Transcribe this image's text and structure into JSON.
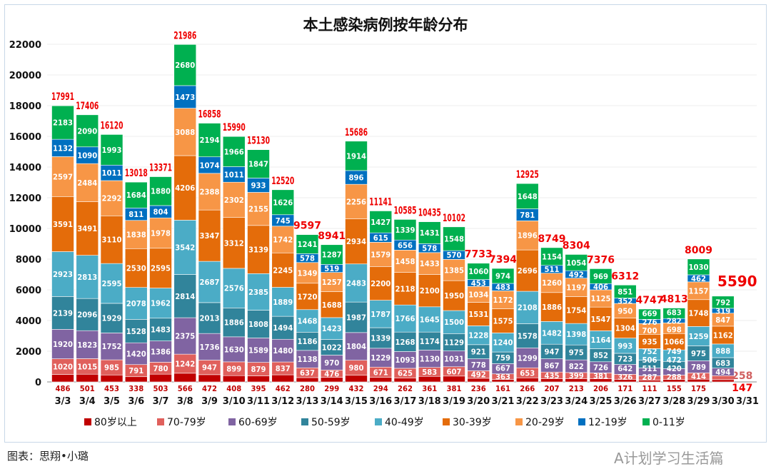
{
  "chart_data": {
    "type": "bar",
    "stacked": true,
    "title": "本土感染病例按年龄分布",
    "ylim": [
      0,
      22000
    ],
    "yticks": [
      0,
      2000,
      4000,
      6000,
      8000,
      10000,
      12000,
      14000,
      16000,
      18000,
      20000,
      22000
    ],
    "grid": true,
    "legend_position": "bottom",
    "categories": [
      "3/3",
      "3/4",
      "3/5",
      "3/6",
      "3/7",
      "3/8",
      "3/9",
      "3/10",
      "3/11",
      "3/12",
      "3/13",
      "3/14",
      "3/15",
      "3/16",
      "3/17",
      "3/18",
      "3/19",
      "3/20",
      "3/21",
      "3/22",
      "3/23",
      "3/24",
      "3/25",
      "3/26",
      "3/27",
      "3/28",
      "3/29",
      "3/30",
      "3/31"
    ],
    "totals": [
      17991,
      17406,
      16120,
      13018,
      13371,
      21986,
      16858,
      15990,
      15130,
      12520,
      9597,
      8941,
      15686,
      11141,
      10585,
      10435,
      10102,
      7733,
      7394,
      12925,
      8749,
      8304,
      7376,
      6312,
      4747,
      4813,
      8009,
      5590,
      null
    ],
    "series": [
      {
        "name": "80岁以上",
        "color": "#c00000",
        "values": [
          486,
          501,
          453,
          338,
          503,
          566,
          472,
          408,
          395,
          462,
          280,
          299,
          432,
          294,
          262,
          361,
          381,
          236,
          161,
          266,
          207,
          213,
          206,
          171,
          111,
          155,
          175,
          147,
          null
        ]
      },
      {
        "name": "70-79岁",
        "color": "#e0605c",
        "values": [
          1020,
          1015,
          985,
          791,
          780,
          1242,
          947,
          899,
          879,
          837,
          637,
          476,
          980,
          671,
          625,
          583,
          607,
          492,
          363,
          653,
          435,
          399,
          381,
          326,
          287,
          288,
          414,
          258,
          null
        ]
      },
      {
        "name": "60-69岁",
        "color": "#8064a2",
        "values": [
          1920,
          1823,
          1752,
          1420,
          1386,
          2375,
          1736,
          1630,
          1589,
          1480,
          1138,
          970,
          1804,
          1229,
          1093,
          1130,
          1031,
          778,
          667,
          1299,
          867,
          822,
          726,
          642,
          511,
          420,
          789,
          494,
          null
        ]
      },
      {
        "name": "50-59岁",
        "color": "#31849b",
        "values": [
          2139,
          2096,
          1929,
          1528,
          1483,
          2814,
          2013,
          1886,
          1808,
          1494,
          1186,
          1022,
          1987,
          1339,
          1268,
          1174,
          1129,
          921,
          759,
          1578,
          947,
          975,
          852,
          723,
          506,
          472,
          975,
          683,
          null
        ]
      },
      {
        "name": "40-49岁",
        "color": "#4bacc6",
        "values": [
          2923,
          2813,
          2595,
          2078,
          1962,
          3542,
          2687,
          2576,
          2385,
          1889,
          1468,
          1423,
          2483,
          1787,
          1766,
          1645,
          1500,
          1228,
          1240,
          2108,
          1482,
          1398,
          1164,
          993,
          752,
          749,
          1259,
          888,
          null
        ]
      },
      {
        "name": "30-39岁",
        "color": "#e46c0a",
        "values": [
          3591,
          3491,
          3110,
          2530,
          2595,
          4206,
          3347,
          3312,
          3139,
          2245,
          1720,
          1688,
          2934,
          2200,
          2118,
          2100,
          1950,
          1531,
          1575,
          2696,
          1886,
          1754,
          1547,
          1304,
          935,
          1066,
          1748,
          1162,
          null
        ]
      },
      {
        "name": "20-29岁",
        "color": "#f79646",
        "values": [
          2597,
          2484,
          2292,
          1838,
          1978,
          3088,
          2388,
          2302,
          2155,
          1742,
          1349,
          1257,
          2256,
          1579,
          1458,
          1433,
          1385,
          1034,
          1172,
          1896,
          1260,
          1197,
          1125,
          950,
          700,
          698,
          1157,
          847,
          null
        ]
      },
      {
        "name": "12-19岁",
        "color": "#0070c0",
        "values": [
          1132,
          1090,
          1011,
          811,
          804,
          1473,
          1074,
          1011,
          933,
          745,
          578,
          519,
          896,
          615,
          656,
          578,
          570,
          453,
          483,
          781,
          511,
          492,
          406,
          352,
          276,
          282,
          462,
          319,
          null
        ]
      },
      {
        "name": "0-11岁",
        "color": "#00b050",
        "values": [
          2183,
          2090,
          1993,
          1684,
          1880,
          2680,
          2194,
          1966,
          1847,
          1626,
          1241,
          1287,
          1914,
          1427,
          1339,
          1431,
          1548,
          1060,
          974,
          1648,
          1154,
          1054,
          969,
          851,
          669,
          683,
          1030,
          792,
          null
        ]
      }
    ]
  },
  "footer": "图表：思翔•小璐",
  "watermark": "A计划学习生活篇"
}
